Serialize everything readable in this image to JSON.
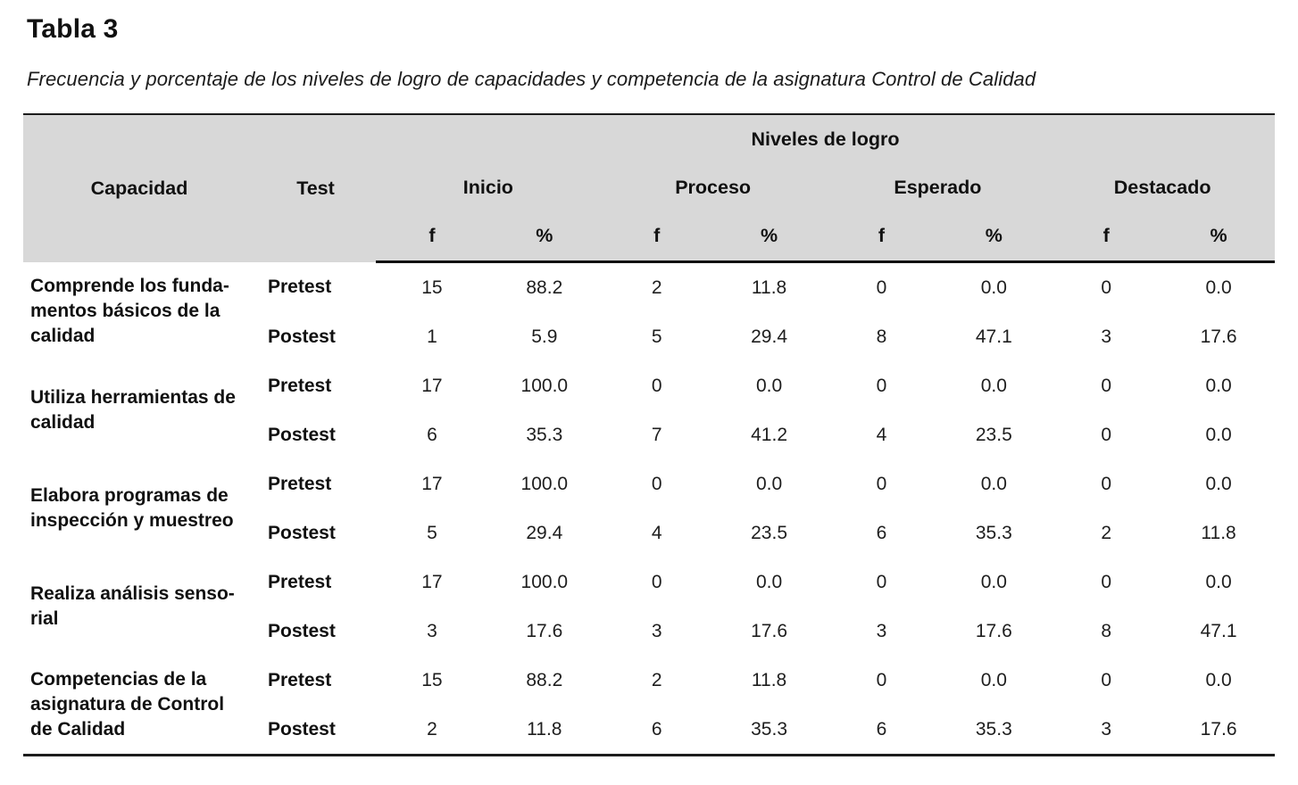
{
  "title": "Tabla 3",
  "subtitle": "Frecuencia y porcentaje de los niveles de logro de capacidades y competencia de la asignatura Control de Calidad",
  "colors": {
    "header_background": "#d8d8d8",
    "rule": "#1c1c1c"
  },
  "table": {
    "header": {
      "group_title": "Niveles de logro",
      "capacidad": "Capacidad",
      "test": "Test",
      "levels": [
        "Inicio",
        "Proceso",
        "Esperado",
        "Destacado"
      ],
      "sub_f": "f",
      "sub_pct": "%"
    },
    "rows": [
      {
        "capacity": "Comprende los funda-\nmentos básicos de la\ncalidad",
        "tests": [
          {
            "name": "Pretest",
            "values": [
              "15",
              "88.2",
              "2",
              "11.8",
              "0",
              "0.0",
              "0",
              "0.0"
            ]
          },
          {
            "name": "Postest",
            "values": [
              "1",
              "5.9",
              "5",
              "29.4",
              "8",
              "47.1",
              "3",
              "17.6"
            ]
          }
        ]
      },
      {
        "capacity": "Utiliza herramientas de\ncalidad",
        "tests": [
          {
            "name": "Pretest",
            "values": [
              "17",
              "100.0",
              "0",
              "0.0",
              "0",
              "0.0",
              "0",
              "0.0"
            ]
          },
          {
            "name": "Postest",
            "values": [
              "6",
              "35.3",
              "7",
              "41.2",
              "4",
              "23.5",
              "0",
              "0.0"
            ]
          }
        ]
      },
      {
        "capacity": "Elabora programas de\ninspección y muestreo",
        "tests": [
          {
            "name": "Pretest",
            "values": [
              "17",
              "100.0",
              "0",
              "0.0",
              "0",
              "0.0",
              "0",
              "0.0"
            ]
          },
          {
            "name": "Postest",
            "values": [
              "5",
              "29.4",
              "4",
              "23.5",
              "6",
              "35.3",
              "2",
              "11.8"
            ]
          }
        ]
      },
      {
        "capacity": "Realiza análisis senso-\nrial",
        "tests": [
          {
            "name": "Pretest",
            "values": [
              "17",
              "100.0",
              "0",
              "0.0",
              "0",
              "0.0",
              "0",
              "0.0"
            ]
          },
          {
            "name": "Postest",
            "values": [
              "3",
              "17.6",
              "3",
              "17.6",
              "3",
              "17.6",
              "8",
              "47.1"
            ]
          }
        ]
      },
      {
        "capacity": "Competencias de la\nasignatura de Control\nde Calidad",
        "tests": [
          {
            "name": "Pretest",
            "values": [
              "15",
              "88.2",
              "2",
              "11.8",
              "0",
              "0.0",
              "0",
              "0.0"
            ]
          },
          {
            "name": "Postest",
            "values": [
              "2",
              "11.8",
              "6",
              "35.3",
              "6",
              "35.3",
              "3",
              "17.6"
            ]
          }
        ]
      }
    ]
  }
}
